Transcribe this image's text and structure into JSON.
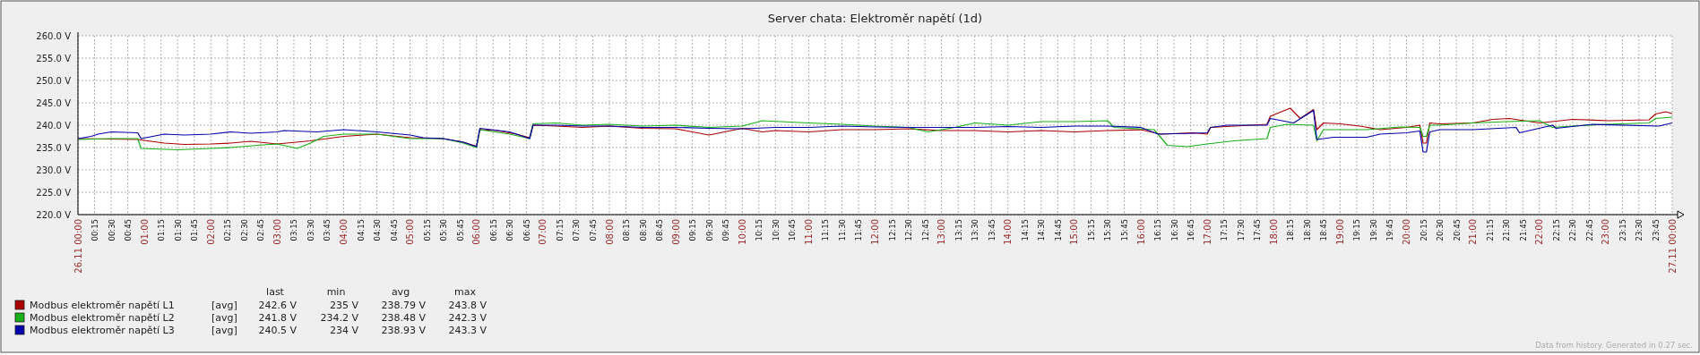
{
  "chart_data": {
    "type": "line",
    "title": "Server chata: Elektroměr napětí (1d)",
    "xlim": [
      0,
      24
    ],
    "xticks": [
      {
        "value": 0,
        "label": "26.11 00:00"
      },
      {
        "value": 0.25,
        "label": "00:15"
      },
      {
        "value": 0.5,
        "label": "00:30"
      },
      {
        "value": 0.75,
        "label": "00:45"
      },
      {
        "value": 1,
        "label": "01:00"
      },
      {
        "value": 1.25,
        "label": "01:15"
      },
      {
        "value": 1.5,
        "label": "01:30"
      },
      {
        "value": 1.75,
        "label": "01:45"
      },
      {
        "value": 2,
        "label": "02:00"
      },
      {
        "value": 2.25,
        "label": "02:15"
      },
      {
        "value": 2.5,
        "label": "02:30"
      },
      {
        "value": 2.75,
        "label": "02:45"
      },
      {
        "value": 3,
        "label": "03:00"
      },
      {
        "value": 3.25,
        "label": "03:15"
      },
      {
        "value": 3.5,
        "label": "03:30"
      },
      {
        "value": 3.75,
        "label": "03:45"
      },
      {
        "value": 4,
        "label": "04:00"
      },
      {
        "value": 4.25,
        "label": "04:15"
      },
      {
        "value": 4.5,
        "label": "04:30"
      },
      {
        "value": 4.75,
        "label": "04:45"
      },
      {
        "value": 5,
        "label": "05:00"
      },
      {
        "value": 5.25,
        "label": "05:15"
      },
      {
        "value": 5.5,
        "label": "05:30"
      },
      {
        "value": 5.75,
        "label": "05:45"
      },
      {
        "value": 6,
        "label": "06:00"
      },
      {
        "value": 6.25,
        "label": "06:15"
      },
      {
        "value": 6.5,
        "label": "06:30"
      },
      {
        "value": 6.75,
        "label": "06:45"
      },
      {
        "value": 7,
        "label": "07:00"
      },
      {
        "value": 7.25,
        "label": "07:15"
      },
      {
        "value": 7.5,
        "label": "07:30"
      },
      {
        "value": 7.75,
        "label": "07:45"
      },
      {
        "value": 8,
        "label": "08:00"
      },
      {
        "value": 8.25,
        "label": "08:15"
      },
      {
        "value": 8.5,
        "label": "08:30"
      },
      {
        "value": 8.75,
        "label": "08:45"
      },
      {
        "value": 9,
        "label": "09:00"
      },
      {
        "value": 9.25,
        "label": "09:15"
      },
      {
        "value": 9.5,
        "label": "09:30"
      },
      {
        "value": 9.75,
        "label": "09:45"
      },
      {
        "value": 10,
        "label": "10:00"
      },
      {
        "value": 10.25,
        "label": "10:15"
      },
      {
        "value": 10.5,
        "label": "10:30"
      },
      {
        "value": 10.75,
        "label": "10:45"
      },
      {
        "value": 11,
        "label": "11:00"
      },
      {
        "value": 11.25,
        "label": "11:15"
      },
      {
        "value": 11.5,
        "label": "11:30"
      },
      {
        "value": 11.75,
        "label": "11:45"
      },
      {
        "value": 12,
        "label": "12:00"
      },
      {
        "value": 12.25,
        "label": "12:15"
      },
      {
        "value": 12.5,
        "label": "12:30"
      },
      {
        "value": 12.75,
        "label": "12:45"
      },
      {
        "value": 13,
        "label": "13:00"
      },
      {
        "value": 13.25,
        "label": "13:15"
      },
      {
        "value": 13.5,
        "label": "13:30"
      },
      {
        "value": 13.75,
        "label": "13:45"
      },
      {
        "value": 14,
        "label": "14:00"
      },
      {
        "value": 14.25,
        "label": "14:15"
      },
      {
        "value": 14.5,
        "label": "14:30"
      },
      {
        "value": 14.75,
        "label": "14:45"
      },
      {
        "value": 15,
        "label": "15:00"
      },
      {
        "value": 15.25,
        "label": "15:15"
      },
      {
        "value": 15.5,
        "label": "15:30"
      },
      {
        "value": 15.75,
        "label": "15:45"
      },
      {
        "value": 16,
        "label": "16:00"
      },
      {
        "value": 16.25,
        "label": "16:15"
      },
      {
        "value": 16.5,
        "label": "16:30"
      },
      {
        "value": 16.75,
        "label": "16:45"
      },
      {
        "value": 17,
        "label": "17:00"
      },
      {
        "value": 17.25,
        "label": "17:15"
      },
      {
        "value": 17.5,
        "label": "17:30"
      },
      {
        "value": 17.75,
        "label": "17:45"
      },
      {
        "value": 18,
        "label": "18:00"
      },
      {
        "value": 18.25,
        "label": "18:15"
      },
      {
        "value": 18.5,
        "label": "18:30"
      },
      {
        "value": 18.75,
        "label": "18:45"
      },
      {
        "value": 19,
        "label": "19:00"
      },
      {
        "value": 19.25,
        "label": "19:15"
      },
      {
        "value": 19.5,
        "label": "19:30"
      },
      {
        "value": 19.75,
        "label": "19:45"
      },
      {
        "value": 20,
        "label": "20:00"
      },
      {
        "value": 20.25,
        "label": "20:15"
      },
      {
        "value": 20.5,
        "label": "20:30"
      },
      {
        "value": 20.75,
        "label": "20:45"
      },
      {
        "value": 21,
        "label": "21:00"
      },
      {
        "value": 21.25,
        "label": "21:15"
      },
      {
        "value": 21.5,
        "label": "21:30"
      },
      {
        "value": 21.75,
        "label": "21:45"
      },
      {
        "value": 22,
        "label": "22:00"
      },
      {
        "value": 22.25,
        "label": "22:15"
      },
      {
        "value": 22.5,
        "label": "22:30"
      },
      {
        "value": 22.75,
        "label": "22:45"
      },
      {
        "value": 23,
        "label": "23:00"
      },
      {
        "value": 23.25,
        "label": "23:15"
      },
      {
        "value": 23.5,
        "label": "23:30"
      },
      {
        "value": 23.75,
        "label": "23:45"
      },
      {
        "value": 24,
        "label": "27.11 00:00"
      }
    ],
    "ylim": [
      220,
      260
    ],
    "yticks": [
      {
        "value": 220,
        "label": "220.0 V"
      },
      {
        "value": 225,
        "label": "225.0 V"
      },
      {
        "value": 230,
        "label": "230.0 V"
      },
      {
        "value": 235,
        "label": "235.0 V"
      },
      {
        "value": 240,
        "label": "240.0 V"
      },
      {
        "value": 245,
        "label": "245.0 V"
      },
      {
        "value": 250,
        "label": "250.0 V"
      },
      {
        "value": 255,
        "label": "255.0 V"
      },
      {
        "value": 260,
        "label": "260.0 V"
      }
    ],
    "grid": true,
    "legend": "bottom left",
    "line_style": "solid",
    "series": [
      {
        "name": "Modbus elektroměr napětí L1",
        "color": "#aa0000",
        "x": [
          0,
          0.9,
          1.3,
          1.6,
          2.0,
          2.3,
          2.6,
          3.0,
          3.5,
          4.0,
          4.5,
          5.0,
          5.5,
          5.8,
          6.0,
          6.05,
          6.3,
          6.6,
          6.8,
          6.85,
          7.2,
          7.6,
          8.0,
          8.5,
          9.0,
          9.5,
          10.0,
          10.3,
          10.5,
          11.0,
          11.5,
          12.0,
          12.5,
          13.0,
          13.5,
          14.0,
          14.5,
          15.0,
          15.5,
          16.0,
          16.3,
          16.8,
          17.0,
          17.05,
          17.9,
          17.95,
          18.25,
          18.4,
          18.6,
          18.65,
          18.75,
          19.0,
          19.3,
          19.6,
          20.0,
          20.2,
          20.25,
          20.3,
          20.35,
          20.5,
          21.0,
          21.3,
          21.55,
          22.0,
          22.5,
          23.05,
          23.65,
          23.75,
          23.9,
          24
        ],
        "values": [
          237,
          236.8,
          236,
          235.7,
          235.8,
          236,
          236.4,
          235.8,
          236.5,
          237.5,
          238,
          237.2,
          237,
          236.2,
          235.3,
          239,
          238.8,
          238,
          237.2,
          240,
          239.8,
          239.5,
          239.8,
          239.3,
          239.2,
          237.8,
          239.3,
          238.5,
          238.8,
          238.5,
          239,
          239,
          239.2,
          238.8,
          238.8,
          238.5,
          238.8,
          238.5,
          238.8,
          239,
          238,
          238.3,
          238,
          239.5,
          240.2,
          242,
          243.8,
          241.5,
          243.5,
          239,
          240.5,
          240.3,
          239.8,
          239,
          239.5,
          240,
          236,
          236,
          240.5,
          240.3,
          240.5,
          241.3,
          241.5,
          240.5,
          241.3,
          241,
          241.2,
          242.5,
          243,
          242.6
        ]
      },
      {
        "name": "Modbus elektroměr napětí L2",
        "color": "#18b018",
        "x": [
          0,
          0.5,
          0.9,
          0.95,
          1.5,
          2.0,
          2.3,
          2.7,
          3.0,
          3.3,
          3.5,
          3.7,
          4.0,
          4.5,
          5.0,
          5.5,
          5.8,
          6.0,
          6.05,
          6.5,
          6.8,
          6.85,
          7.2,
          7.6,
          8.0,
          8.5,
          9.0,
          9.5,
          10.0,
          10.3,
          11.0,
          11.5,
          12.0,
          12.5,
          12.8,
          13.2,
          13.5,
          14.0,
          14.5,
          15.0,
          15.5,
          15.6,
          16.2,
          16.4,
          16.7,
          17.0,
          17.4,
          17.9,
          17.95,
          18.2,
          18.6,
          18.65,
          18.75,
          19.4,
          19.9,
          20.2,
          20.25,
          20.3,
          20.35,
          20.5,
          21.0,
          21.5,
          22.0,
          22.2,
          22.5,
          23.0,
          23.65,
          23.75,
          24
        ],
        "values": [
          236.8,
          237,
          237,
          234.8,
          234.5,
          234.8,
          235,
          235.5,
          235.8,
          234.8,
          236,
          237.5,
          238,
          238,
          237,
          237,
          236,
          235,
          239,
          238,
          237,
          240.3,
          240.5,
          240,
          240.2,
          239.8,
          240,
          239.5,
          239.8,
          241,
          240.5,
          240.2,
          239.8,
          239.5,
          238.5,
          239.5,
          240.5,
          240,
          240.8,
          240.8,
          241,
          239.5,
          239,
          235.5,
          235.2,
          235.8,
          236.5,
          237,
          239.5,
          240.2,
          240,
          236.5,
          239,
          239,
          239.6,
          239.5,
          237.5,
          237.5,
          240,
          240,
          240.5,
          240.8,
          241,
          239.5,
          239.8,
          240.2,
          240.5,
          241.5,
          241.8
        ]
      },
      {
        "name": "Modbus elektroměr napětí L3",
        "color": "#0000aa",
        "x": [
          0,
          0.2,
          0.3,
          0.5,
          0.9,
          0.95,
          1.3,
          1.6,
          2.0,
          2.3,
          2.6,
          3.0,
          3.1,
          3.6,
          4.0,
          4.5,
          5.0,
          5.2,
          5.5,
          5.8,
          6.0,
          6.05,
          6.5,
          6.8,
          6.85,
          7.2,
          7.6,
          8.0,
          8.5,
          9.0,
          9.5,
          10.0,
          10.5,
          11.0,
          11.5,
          12.0,
          12.5,
          13.0,
          13.5,
          14.0,
          14.5,
          15.0,
          15.5,
          16.0,
          16.26,
          16.8,
          17.0,
          17.05,
          17.3,
          17.9,
          17.95,
          18.3,
          18.6,
          18.65,
          18.9,
          19.4,
          19.6,
          20.0,
          20.2,
          20.25,
          20.3,
          20.35,
          20.5,
          21.0,
          21.65,
          21.7,
          22.2,
          22.25,
          22.8,
          23.8,
          24
        ],
        "values": [
          237,
          237.5,
          238,
          238.5,
          238.3,
          237,
          238,
          237.8,
          238,
          238.5,
          238.2,
          238.5,
          238.8,
          238.5,
          239,
          238.5,
          237.8,
          237.2,
          237,
          236.2,
          235.2,
          239.3,
          238.5,
          237,
          240,
          240,
          239.8,
          239.8,
          239.5,
          239.5,
          239.3,
          239.2,
          239.5,
          239.5,
          239.8,
          239.6,
          239.5,
          239.5,
          239.5,
          239.7,
          239.5,
          239.8,
          239.8,
          239.5,
          238,
          238.2,
          238.3,
          239.5,
          240,
          240,
          241.5,
          240.5,
          243.3,
          236.8,
          237.3,
          237.3,
          238,
          238.3,
          238.7,
          234,
          234,
          238.5,
          239,
          239,
          239.5,
          238.3,
          240,
          239.3,
          240.2,
          239.8,
          240.5
        ]
      }
    ],
    "annotations": [
      "last",
      "min",
      "avg",
      "max",
      "[avg]",
      "242.6 V",
      "235 V",
      "238.79 V",
      "243.8 V",
      "[avg]",
      "241.8 V",
      "234.2 V",
      "238.48 V",
      "242.3 V",
      "[avg]",
      "240.5 V",
      "234 V",
      "238.93 V",
      "243.3 V",
      "Data from history. Generated in 0.27 sec."
    ]
  }
}
